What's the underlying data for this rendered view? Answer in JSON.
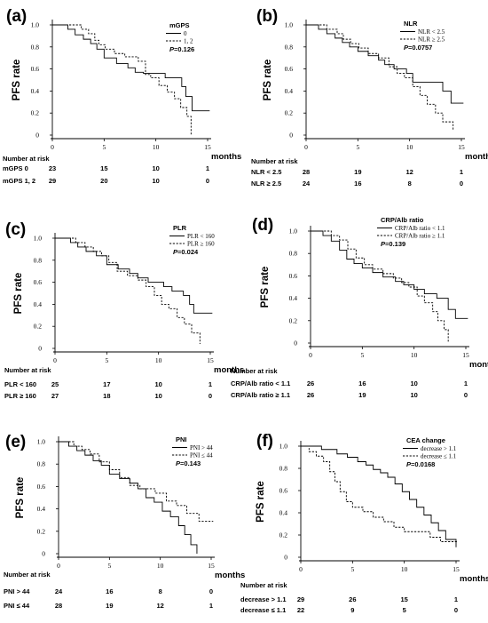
{
  "chart_data": [
    {
      "type": "line",
      "panel_label": "(a)",
      "ylabel": "PFS rate",
      "xunit": "months",
      "x_ticks": [
        "0",
        "5",
        "10",
        "15"
      ],
      "y_ticks": [
        "0",
        "0.2",
        "0.4",
        "0.6",
        "0.8",
        "1.0"
      ],
      "xlim": [
        0,
        15
      ],
      "ylim": [
        0,
        1
      ],
      "legend": {
        "title": "mGPS",
        "position": "top-right"
      },
      "p_value": "P=0.126",
      "series": [
        {
          "name": "0",
          "style": "solid",
          "x": [
            0,
            1.5,
            2.2,
            3.0,
            3.7,
            4.3,
            5.0,
            6.2,
            7.3,
            8.0,
            8.8,
            10.3,
            10.9,
            12.5,
            12.9,
            13.5,
            15.2
          ],
          "y": [
            1.0,
            0.96,
            0.91,
            0.87,
            0.83,
            0.78,
            0.7,
            0.65,
            0.61,
            0.57,
            0.56,
            0.56,
            0.52,
            0.44,
            0.35,
            0.22,
            0.22
          ]
        },
        {
          "name": "1, 2",
          "style": "dashed",
          "x": [
            0,
            2.8,
            3.5,
            4.1,
            4.5,
            5.1,
            6.0,
            7.0,
            8.3,
            9.0,
            9.5,
            10.3,
            11.1,
            11.8,
            12.4,
            13.0,
            13.4
          ],
          "y": [
            1.0,
            0.96,
            0.92,
            0.86,
            0.82,
            0.78,
            0.74,
            0.71,
            0.67,
            0.55,
            0.52,
            0.45,
            0.39,
            0.33,
            0.25,
            0.17,
            0.0
          ]
        }
      ],
      "risk_table": {
        "title": "Number at risk",
        "rows": [
          {
            "label": "mGPS 0",
            "values": [
              "23",
              "15",
              "10",
              "1"
            ]
          },
          {
            "label": "mGPS 1, 2",
            "values": [
              "29",
              "20",
              "10",
              "0"
            ]
          }
        ]
      }
    },
    {
      "type": "line",
      "panel_label": "(b)",
      "ylabel": "PFS rate",
      "xunit": "months",
      "x_ticks": [
        "0",
        "5",
        "10",
        "15"
      ],
      "y_ticks": [
        "0",
        "0.2",
        "0.4",
        "0.6",
        "0.8",
        "1.0"
      ],
      "xlim": [
        0,
        15
      ],
      "ylim": [
        0,
        1
      ],
      "legend": {
        "title": "NLR",
        "position": "top-right"
      },
      "p_value": "P=0.0757",
      "series": [
        {
          "name": "NLR < 2.5",
          "style": "solid",
          "x": [
            0,
            1.2,
            2.0,
            2.8,
            3.5,
            4.2,
            5.0,
            6.0,
            7.0,
            7.6,
            8.5,
            9.7,
            10.3,
            12.0,
            13.2,
            14.0,
            15.2
          ],
          "y": [
            1.0,
            0.96,
            0.92,
            0.88,
            0.84,
            0.8,
            0.76,
            0.72,
            0.68,
            0.64,
            0.6,
            0.56,
            0.48,
            0.48,
            0.4,
            0.29,
            0.29
          ]
        },
        {
          "name": "NLR ≥ 2.5",
          "style": "dashed",
          "x": [
            0,
            2.0,
            3.0,
            3.6,
            4.3,
            5.1,
            6.0,
            7.0,
            8.0,
            8.8,
            9.5,
            10.3,
            11.0,
            11.7,
            12.5,
            13.2,
            14.2
          ],
          "y": [
            1.0,
            0.96,
            0.92,
            0.87,
            0.83,
            0.79,
            0.74,
            0.7,
            0.62,
            0.56,
            0.52,
            0.44,
            0.36,
            0.28,
            0.2,
            0.12,
            0.04
          ]
        }
      ],
      "risk_table": {
        "title": "Number at risk",
        "rows": [
          {
            "label": "NLR < 2.5",
            "values": [
              "28",
              "19",
              "12",
              "1"
            ]
          },
          {
            "label": "NLR ≥ 2.5",
            "values": [
              "24",
              "16",
              "8",
              "0"
            ]
          }
        ]
      }
    },
    {
      "type": "line",
      "panel_label": "(c)",
      "ylabel": "PFS rate",
      "xunit": "months",
      "x_ticks": [
        "0",
        "5",
        "10",
        "15"
      ],
      "y_ticks": [
        "0",
        "0.2",
        "0.4",
        "0.6",
        "0.8",
        "1.0"
      ],
      "xlim": [
        0,
        15
      ],
      "ylim": [
        0,
        1
      ],
      "legend": {
        "title": "PLR",
        "position": "top-right"
      },
      "p_value": "P=0.024",
      "series": [
        {
          "name": "PLR < 160",
          "style": "solid",
          "x": [
            0,
            1.5,
            2.2,
            3.0,
            4.0,
            5.0,
            6.1,
            7.2,
            8.0,
            9.0,
            10.5,
            11.3,
            12.4,
            13.0,
            13.4,
            15.2
          ],
          "y": [
            1.0,
            0.96,
            0.92,
            0.88,
            0.84,
            0.76,
            0.72,
            0.68,
            0.64,
            0.6,
            0.56,
            0.52,
            0.48,
            0.4,
            0.32,
            0.32
          ]
        },
        {
          "name": "PLR ≥ 160",
          "style": "dashed",
          "x": [
            0,
            2.0,
            2.9,
            3.7,
            4.5,
            5.2,
            6.0,
            7.0,
            8.0,
            8.8,
            9.6,
            10.3,
            11.0,
            11.8,
            12.5,
            13.2,
            14.0
          ],
          "y": [
            1.0,
            0.96,
            0.92,
            0.88,
            0.84,
            0.78,
            0.7,
            0.66,
            0.62,
            0.56,
            0.48,
            0.4,
            0.36,
            0.28,
            0.22,
            0.14,
            0.04
          ]
        }
      ],
      "risk_table": {
        "title": "Number at risk",
        "rows": [
          {
            "label": "PLR < 160",
            "values": [
              "25",
              "17",
              "10",
              "1"
            ]
          },
          {
            "label": "PLR ≥ 160",
            "values": [
              "27",
              "18",
              "10",
              "0"
            ]
          }
        ]
      }
    },
    {
      "type": "line",
      "panel_label": "(d)",
      "ylabel": "PFS rate",
      "xunit": "months",
      "x_ticks": [
        "0",
        "5",
        "10",
        "15"
      ],
      "y_ticks": [
        "0",
        "0.2",
        "0.4",
        "0.6",
        "0.8",
        "1.0"
      ],
      "xlim": [
        0,
        15
      ],
      "ylim": [
        0,
        1
      ],
      "legend": {
        "title": "CRP/Alb ratio",
        "position": "top-right"
      },
      "p_value": "P=0.139",
      "series": [
        {
          "name": "CRP/Alb ratio < 1.1",
          "style": "solid",
          "x": [
            0,
            1.2,
            2.0,
            2.8,
            3.5,
            4.2,
            5.0,
            6.0,
            7.0,
            8.2,
            9.0,
            10.0,
            11.0,
            12.2,
            13.3,
            14.0,
            15.2
          ],
          "y": [
            1.0,
            0.96,
            0.91,
            0.83,
            0.75,
            0.71,
            0.67,
            0.63,
            0.59,
            0.55,
            0.52,
            0.48,
            0.44,
            0.4,
            0.3,
            0.22,
            0.22
          ]
        },
        {
          "name": "CRP/Alb ratio ≥ 1.1",
          "style": "dashed",
          "x": [
            0,
            2.0,
            2.8,
            3.6,
            4.4,
            5.2,
            6.0,
            7.0,
            8.0,
            8.8,
            9.5,
            10.3,
            11.0,
            11.8,
            12.3,
            12.9,
            13.3
          ],
          "y": [
            1.0,
            0.96,
            0.92,
            0.84,
            0.76,
            0.7,
            0.66,
            0.62,
            0.58,
            0.54,
            0.5,
            0.42,
            0.36,
            0.28,
            0.2,
            0.12,
            0.0
          ]
        }
      ],
      "risk_table": {
        "title": "Number at risk",
        "rows": [
          {
            "label": "CRP/Alb ratio < 1.1",
            "values": [
              "26",
              "16",
              "10",
              "1"
            ]
          },
          {
            "label": "CRP/Alb ratio ≥ 1.1",
            "values": [
              "26",
              "19",
              "10",
              "0"
            ]
          }
        ]
      }
    },
    {
      "type": "line",
      "panel_label": "(e)",
      "ylabel": "PFS rate",
      "xunit": "months",
      "x_ticks": [
        "0",
        "5",
        "10",
        "15"
      ],
      "y_ticks": [
        "0",
        "0.2",
        "0.4",
        "0.6",
        "0.8",
        "1.0"
      ],
      "xlim": [
        0,
        15
      ],
      "ylim": [
        0,
        1
      ],
      "legend": {
        "title": "PNI",
        "position": "top-right"
      },
      "p_value": "P=0.143",
      "series": [
        {
          "name": "PNI > 44",
          "style": "solid",
          "x": [
            0,
            1.0,
            1.8,
            2.6,
            3.4,
            4.2,
            5.0,
            6.0,
            7.0,
            7.8,
            8.6,
            9.4,
            10.2,
            11.0,
            11.8,
            12.4,
            13.0,
            13.6
          ],
          "y": [
            1.0,
            0.96,
            0.92,
            0.88,
            0.83,
            0.79,
            0.71,
            0.67,
            0.63,
            0.58,
            0.5,
            0.46,
            0.38,
            0.33,
            0.25,
            0.17,
            0.08,
            0.0
          ]
        },
        {
          "name": "PNI ≤ 44",
          "style": "dashed",
          "x": [
            0,
            1.5,
            2.3,
            3.1,
            4.0,
            5.0,
            6.0,
            7.0,
            8.0,
            9.5,
            10.6,
            11.6,
            12.6,
            13.8,
            15.2
          ],
          "y": [
            1.0,
            0.96,
            0.93,
            0.89,
            0.82,
            0.75,
            0.68,
            0.61,
            0.58,
            0.54,
            0.47,
            0.43,
            0.36,
            0.29,
            0.29
          ]
        }
      ],
      "risk_table": {
        "title": "Number at risk",
        "rows": [
          {
            "label": "PNI > 44",
            "values": [
              "24",
              "16",
              "8",
              "0"
            ]
          },
          {
            "label": "PNI ≤ 44",
            "values": [
              "28",
              "19",
              "12",
              "1"
            ]
          }
        ]
      }
    },
    {
      "type": "line",
      "panel_label": "(f)",
      "ylabel": "PFS rate",
      "xunit": "months",
      "x_ticks": [
        "0",
        "5",
        "10",
        "15"
      ],
      "y_ticks": [
        "0",
        "0.2",
        "0.4",
        "0.6",
        "0.8",
        "1.0"
      ],
      "xlim": [
        0,
        15
      ],
      "ylim": [
        0,
        1
      ],
      "legend": {
        "title": "CEA change",
        "position": "top-right"
      },
      "p_value": "P=0.0168",
      "series": [
        {
          "name": "decrease > 1.1",
          "style": "solid",
          "x": [
            0,
            2.0,
            3.5,
            4.5,
            5.5,
            6.3,
            7.0,
            7.7,
            8.4,
            9.1,
            9.8,
            10.5,
            11.2,
            11.9,
            12.6,
            13.3,
            14.0,
            15.0
          ],
          "y": [
            1.0,
            0.97,
            0.93,
            0.9,
            0.86,
            0.83,
            0.79,
            0.76,
            0.72,
            0.66,
            0.59,
            0.52,
            0.45,
            0.38,
            0.31,
            0.24,
            0.16,
            0.09
          ]
        },
        {
          "name": "decrease ≤ 1.1",
          "style": "dashed",
          "x": [
            0,
            0.8,
            1.5,
            2.2,
            2.8,
            3.3,
            3.8,
            4.4,
            5.0,
            6.0,
            7.0,
            8.0,
            9.0,
            10.0,
            11.5,
            12.5,
            13.5,
            15.2
          ],
          "y": [
            1.0,
            0.95,
            0.91,
            0.86,
            0.77,
            0.68,
            0.59,
            0.5,
            0.45,
            0.41,
            0.36,
            0.32,
            0.27,
            0.23,
            0.23,
            0.18,
            0.14,
            0.14
          ]
        }
      ],
      "risk_table": {
        "title": "Number at risk",
        "rows": [
          {
            "label": "decrease > 1.1",
            "values": [
              "29",
              "26",
              "15",
              "1"
            ]
          },
          {
            "label": "decrease ≤ 1.1",
            "values": [
              "22",
              "9",
              "5",
              "0"
            ]
          }
        ]
      }
    }
  ]
}
